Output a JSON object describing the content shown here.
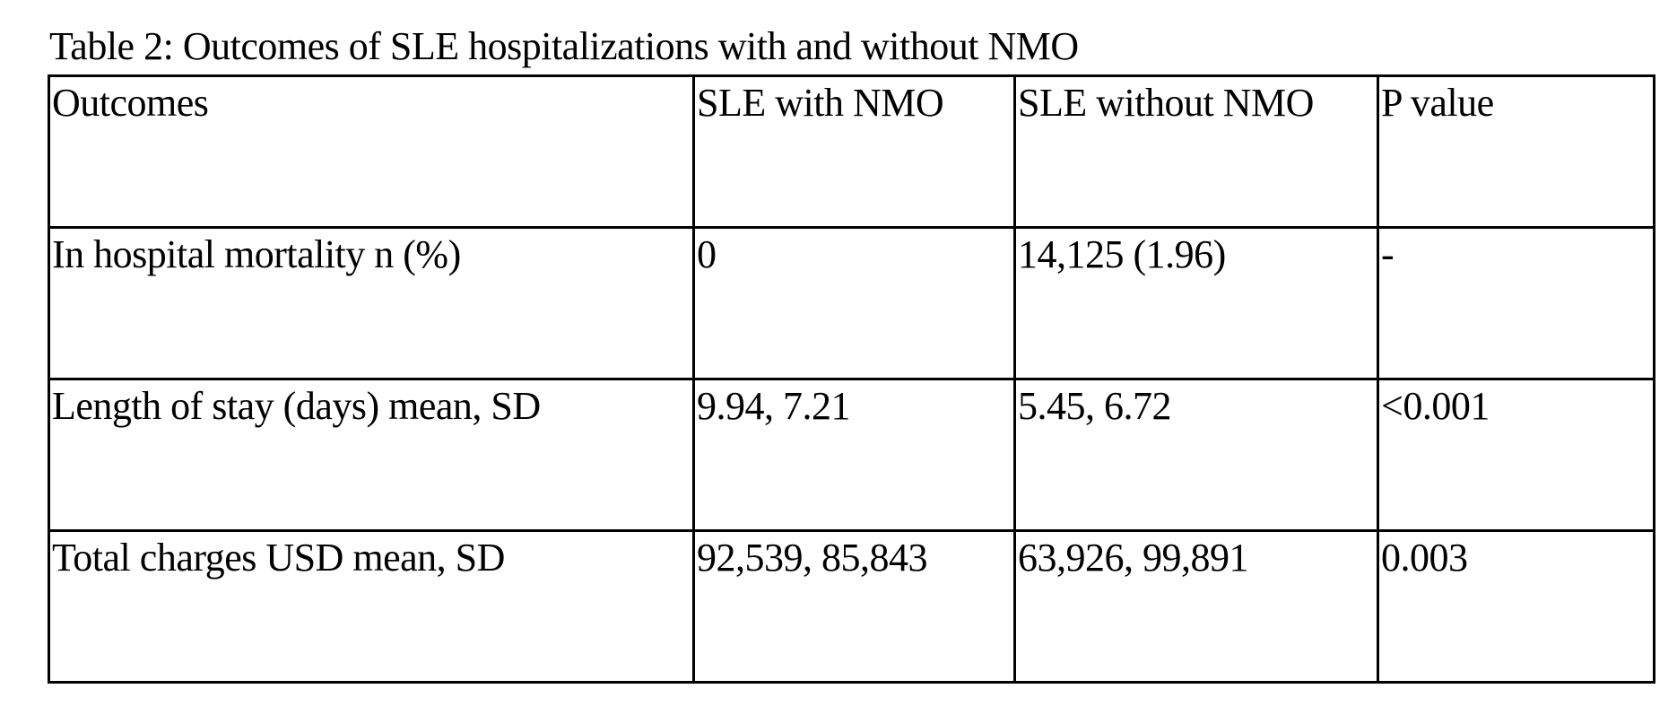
{
  "caption": "Table 2: Outcomes of SLE hospitalizations  with and without  NMO",
  "table": {
    "headers": [
      "Outcomes",
      "SLE with  NMO",
      "SLE without  NMO",
      "P value"
    ],
    "rows": [
      [
        "In hospital  mortality  n (%)",
        "0",
        "14,125  (1.96)",
        "-"
      ],
      [
        "Length of stay (days) mean, SD",
        "9.94,  7.21",
        "5.45,  6.72",
        "<0.001"
      ],
      [
        "Total charges USD mean, SD",
        "92,539,  85,843",
        "63,926,  99,891",
        "0.003"
      ]
    ]
  }
}
